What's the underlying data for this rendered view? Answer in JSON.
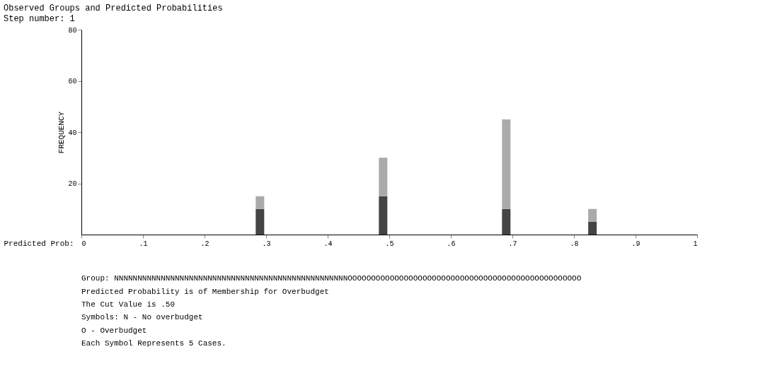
{
  "chart_data": {
    "type": "bar",
    "stacked": true,
    "title": "Observed Groups and Predicted Probabilities",
    "subtitle": "Step number: 1",
    "xlabel": "Predicted Prob:",
    "ylabel": "FREQUENCY",
    "x": [
      0.29,
      0.49,
      0.69,
      0.83
    ],
    "series": [
      {
        "color": "#444444",
        "values": [
          10,
          15,
          10,
          5
        ]
      },
      {
        "color": "#aaaaaa",
        "values": [
          5,
          15,
          35,
          5
        ]
      }
    ],
    "xlim": [
      0,
      1
    ],
    "xticks": [
      0,
      {
        "value": 0.1,
        "label": ".1"
      },
      {
        "value": 0.2,
        "label": ".2"
      },
      {
        "value": 0.3,
        "label": ".3"
      },
      {
        "value": 0.4,
        "label": ".4"
      },
      {
        "value": 0.5,
        "label": ".5"
      },
      {
        "value": 0.6,
        "label": ".6"
      },
      {
        "value": 0.7,
        "label": ".7"
      },
      {
        "value": 0.8,
        "label": ".8"
      },
      {
        "value": 0.9,
        "label": ".9"
      },
      1
    ],
    "ylim": [
      0,
      80
    ],
    "yticks": [
      20,
      40,
      60,
      80
    ],
    "grid": false,
    "legend": false,
    "annotations": [
      "Group:  NNNNNNNNNNNNNNNNNNNNNNNNNNNNNNNNNNNNNNNNNNNNNNNNNNOOOOOOOOOOOOOOOOOOOOOOOOOOOOOOOOOOOOOOOOOOOOOOOOOO",
      "Predicted Probability is of Membership for Overbudget",
      "The Cut Value is .50",
      "Symbols: N - No overbudget",
      "O - Overbudget",
      "Each Symbol Represents 5 Cases."
    ]
  }
}
